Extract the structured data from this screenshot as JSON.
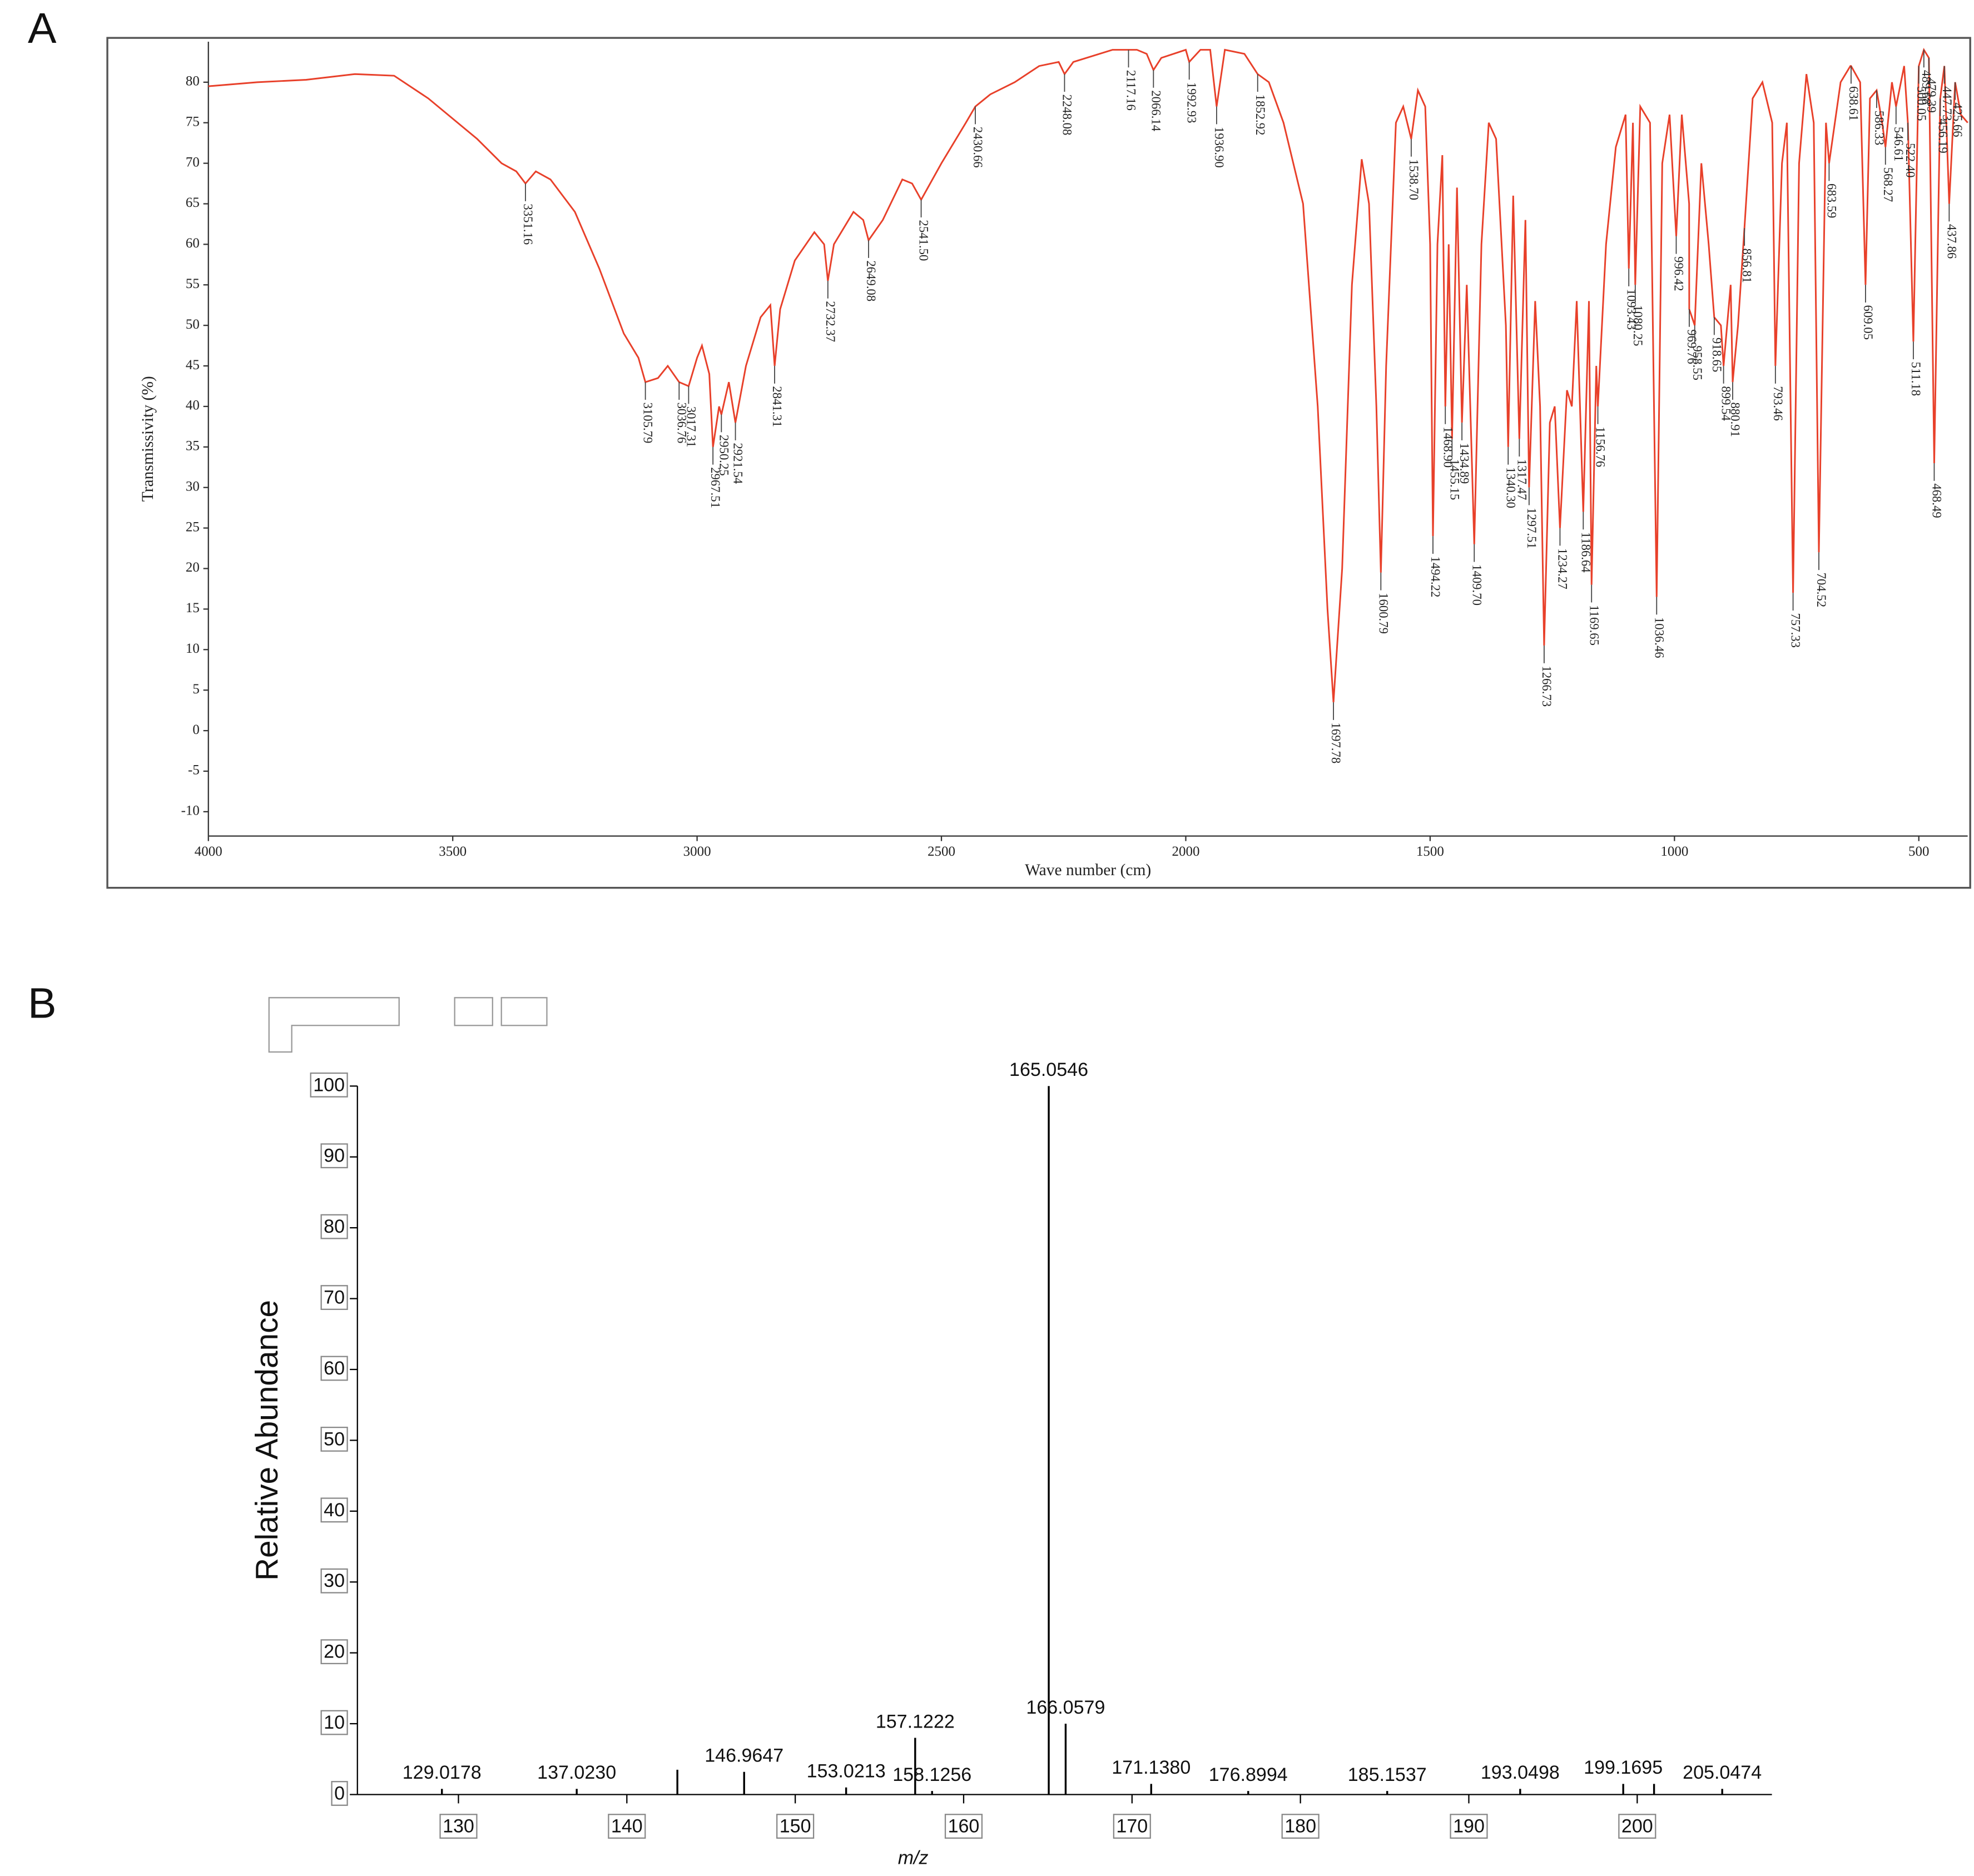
{
  "chart_data": [
    {
      "type": "line",
      "panel": "A",
      "xlabel": "Wave number (cm)",
      "ylabel": "Transmissivity (%)",
      "color": "#e8402a",
      "xlim": [
        4000,
        400
      ],
      "ylim": [
        -13,
        85
      ],
      "xticks": [
        4000,
        3500,
        3000,
        2500,
        2000,
        1500,
        1000,
        500
      ],
      "yticks": [
        -10,
        -5,
        0,
        5,
        10,
        15,
        20,
        25,
        30,
        35,
        40,
        45,
        50,
        55,
        60,
        65,
        70,
        75,
        80
      ],
      "x": [
        4000,
        3900,
        3800,
        3700,
        3620,
        3550,
        3450,
        3400,
        3370,
        3351.16,
        3330,
        3300,
        3250,
        3200,
        3150,
        3120,
        3105.79,
        3080,
        3060,
        3036.76,
        3017.31,
        3000,
        2990,
        2975,
        2967.51,
        2955,
        2950.25,
        2935,
        2921.54,
        2900,
        2870,
        2850,
        2841.31,
        2830,
        2800,
        2760,
        2740,
        2732.37,
        2720,
        2680,
        2660,
        2649.08,
        2620,
        2580,
        2560,
        2541.5,
        2500,
        2450,
        2430.66,
        2400,
        2350,
        2300,
        2260,
        2248.08,
        2230,
        2150,
        2117.16,
        2100,
        2080,
        2066.14,
        2050,
        2000,
        1992.93,
        1970,
        1950,
        1936.9,
        1920,
        1880,
        1852.92,
        1830,
        1800,
        1760,
        1730,
        1710,
        1697.78,
        1680,
        1660,
        1640,
        1625,
        1610,
        1600.79,
        1590,
        1570,
        1555,
        1538.7,
        1525,
        1510,
        1500,
        1494.22,
        1485,
        1475,
        1468.9,
        1462,
        1455.15,
        1445,
        1434.89,
        1425,
        1409.7,
        1395,
        1380,
        1365,
        1345,
        1340.3,
        1330,
        1317.47,
        1305,
        1297.51,
        1285,
        1275,
        1266.73,
        1255,
        1245,
        1234.27,
        1220,
        1210,
        1200,
        1186.64,
        1175,
        1169.65,
        1160,
        1156.76,
        1140,
        1120,
        1100,
        1093.43,
        1085,
        1080.25,
        1070,
        1050,
        1036.46,
        1025,
        1010,
        996.42,
        985,
        970,
        969.76,
        958.55,
        945,
        930,
        918.65,
        905,
        899.54,
        885,
        880.91,
        870,
        856.81,
        840,
        820,
        800,
        793.46,
        780,
        770,
        757.33,
        745,
        730,
        715,
        704.52,
        690,
        683.59,
        660,
        640,
        638.61,
        620,
        609.05,
        600,
        586.33,
        575,
        568.27,
        555,
        546.61,
        530,
        522.4,
        511.18,
        500.05,
        489.68,
        479.39,
        468.49,
        456.19,
        447.73,
        437.86,
        425.66,
        414,
        400
      ],
      "values": [
        79.5,
        80,
        80.3,
        81,
        80.8,
        78,
        73,
        70,
        69,
        67.5,
        69,
        68,
        64,
        57,
        49,
        46,
        43,
        43.5,
        45,
        43,
        42.5,
        46,
        47.5,
        44,
        35,
        40,
        39,
        43,
        38,
        45,
        51,
        52.5,
        45,
        52,
        58,
        61.5,
        60,
        55.5,
        60,
        64,
        63,
        60.5,
        63,
        68,
        67.5,
        65.5,
        70,
        75,
        77,
        78.5,
        80,
        82,
        82.5,
        81,
        82.5,
        84,
        84,
        84,
        83.5,
        81.5,
        83,
        84,
        82.5,
        84,
        84,
        77,
        84,
        83.5,
        81,
        80,
        75,
        65,
        40,
        15,
        3.5,
        20,
        55,
        70.5,
        65,
        40,
        19.5,
        45,
        75,
        77,
        73,
        79,
        77,
        60,
        24,
        60,
        71,
        40,
        60,
        36,
        67,
        38,
        55,
        23,
        60,
        75,
        73,
        50,
        35,
        66,
        36,
        63,
        30,
        53,
        40,
        10.5,
        38,
        40,
        25,
        42,
        40,
        53,
        27,
        53,
        18,
        45,
        40,
        60,
        72,
        76,
        57,
        75,
        55,
        77,
        75,
        16.5,
        70,
        76,
        61,
        76,
        65,
        52,
        50,
        70,
        60,
        51,
        50,
        45,
        55,
        43,
        50,
        62,
        78,
        80,
        75,
        45,
        70,
        75,
        17,
        70,
        81,
        75,
        22,
        75,
        70,
        80,
        82,
        82,
        80,
        55,
        78,
        79,
        75,
        72,
        80,
        77,
        82,
        75,
        48,
        82,
        84,
        83,
        33,
        78,
        82,
        65,
        80,
        76,
        75
      ],
      "peak_x": [
        3351.16,
        3105.79,
        3036.76,
        3017.31,
        2967.51,
        2950.25,
        2921.54,
        2841.31,
        2732.37,
        2649.08,
        2541.5,
        2430.66,
        2248.08,
        2117.16,
        2066.14,
        1992.93,
        1936.9,
        1852.92,
        1697.78,
        1600.79,
        1538.7,
        1494.22,
        1468.9,
        1455.15,
        1434.89,
        1409.7,
        1340.3,
        1317.47,
        1297.51,
        1266.73,
        1234.27,
        1186.64,
        1169.65,
        1156.76,
        1093.43,
        1080.25,
        1036.46,
        996.42,
        969.76,
        958.55,
        918.65,
        899.54,
        880.91,
        856.81,
        793.46,
        757.33,
        704.52,
        683.59,
        638.61,
        609.05,
        586.33,
        568.27,
        546.61,
        522.4,
        511.18,
        500.05,
        489.68,
        479.39,
        468.49,
        456.19,
        447.73,
        437.86,
        425.66
      ],
      "peak_labels": [
        "3351.16",
        "3105.79",
        "3036.76",
        "3017.31",
        "2967.51",
        "2950.25",
        "2921.54",
        "2841.31",
        "2732.37",
        "2649.08",
        "2541.50",
        "2430.66",
        "2248.08",
        "2117.16",
        "2066.14",
        "1992.93",
        "1936.90",
        "1852.92",
        "1697.78",
        "1600.79",
        "1538.70",
        "1494.22",
        "1468.90",
        "1455.15",
        "1434.89",
        "1409.70",
        "1340.30",
        "1317.47",
        "1297.51",
        "1266.73",
        "1234.27",
        "1186.64",
        "1169.65",
        "1156.76",
        "1093.43",
        "1080.25",
        "1036.46",
        "996.42",
        "969.76",
        "958.55",
        "918.65",
        "899.54",
        "880.91",
        "856.81",
        "793.46",
        "757.33",
        "704.52",
        "683.59",
        "638.61",
        "609.05",
        "586.33",
        "568.27",
        "546.61",
        "522.40",
        "511.18",
        "500.05",
        "489.68",
        "479.39",
        "468.49",
        "456.19",
        "447.73",
        "437.86",
        "425.66"
      ]
    },
    {
      "type": "stem",
      "panel": "B",
      "xlabel": "m/z",
      "ylabel": "Relative Abundance",
      "color": "#000000",
      "xlim": [
        124,
        208
      ],
      "ylim": [
        0,
        100
      ],
      "xticks": [
        130,
        140,
        150,
        160,
        170,
        180,
        190,
        200
      ],
      "yticks": [
        0,
        10,
        20,
        30,
        40,
        50,
        60,
        70,
        80,
        90,
        100
      ],
      "x": [
        129.0178,
        137.023,
        143.0,
        146.9647,
        153.0213,
        157.1222,
        158.1256,
        165.0546,
        166.0579,
        171.138,
        176.8994,
        185.1537,
        193.0498,
        199.1695,
        201.0,
        205.0474
      ],
      "values": [
        0.8,
        0.8,
        3.5,
        3.2,
        1.0,
        8.0,
        0.5,
        100,
        10.0,
        1.5,
        0.5,
        0.5,
        0.8,
        1.5,
        1.5,
        0.8
      ],
      "peak_labels": [
        "129.0178",
        "137.0230",
        null,
        "146.9647",
        "153.0213",
        "157.1222",
        "158.1256",
        "165.0546",
        "166.0579",
        "171.1380",
        "176.8994",
        "185.1537",
        "193.0498",
        "199.1695",
        null,
        "205.0474"
      ]
    }
  ]
}
